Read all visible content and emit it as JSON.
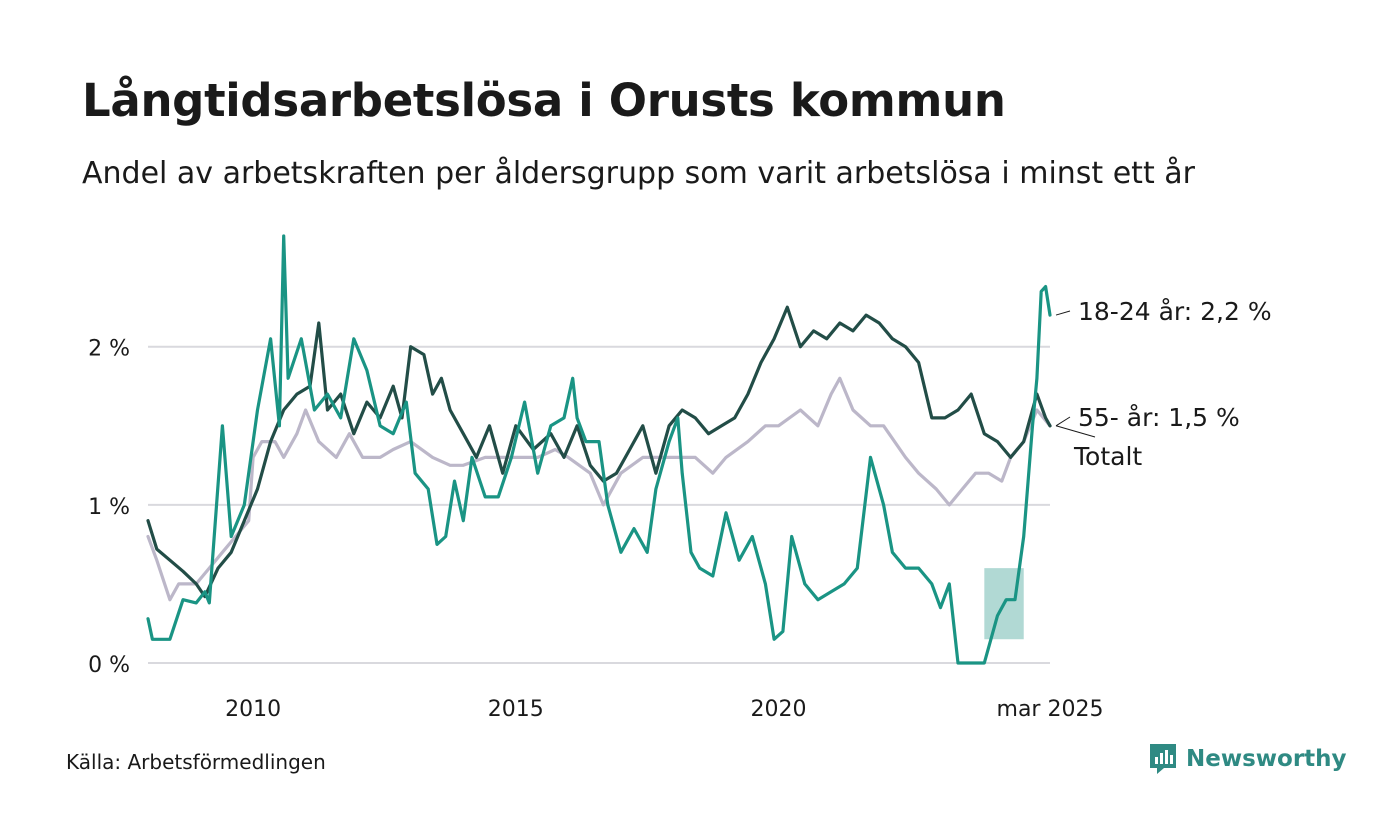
{
  "title": "Långtidsarbetslösa i Orusts kommun",
  "subtitle": "Andel av arbetskraften per åldersgrupp som varit arbetslösa i minst ett år",
  "source": "Källa: Arbetsförmedlingen",
  "brand": {
    "name": "Newsworthy",
    "icon": "newsworthy-logo-icon",
    "color": "#2f8a83"
  },
  "chart_data": {
    "type": "line",
    "x_unit": "date",
    "xlim": [
      "2008-01",
      "2025-03"
    ],
    "ylim": [
      0,
      2.7
    ],
    "yticks": [
      {
        "value": 0,
        "label": "0 %"
      },
      {
        "value": 1,
        "label": "1 %"
      },
      {
        "value": 2,
        "label": "2 %"
      }
    ],
    "xticks": [
      {
        "value": "2010-01",
        "label": "2010"
      },
      {
        "value": "2015-01",
        "label": "2015"
      },
      {
        "value": "2020-01",
        "label": "2020"
      },
      {
        "value": "2025-03",
        "label": "mar 2025"
      }
    ],
    "grid": "horizontal",
    "legend": "direct labels at right end",
    "series": [
      {
        "name": "Totalt",
        "end_label": "Totalt",
        "color": "#bcb7c9",
        "points": [
          [
            "2008-01",
            0.8
          ],
          [
            "2008-03",
            0.65
          ],
          [
            "2008-06",
            0.4
          ],
          [
            "2008-08",
            0.5
          ],
          [
            "2008-12",
            0.5
          ],
          [
            "2009-03",
            0.6
          ],
          [
            "2009-06",
            0.7
          ],
          [
            "2009-09",
            0.8
          ],
          [
            "2009-12",
            0.9
          ],
          [
            "2010-01",
            1.3
          ],
          [
            "2010-03",
            1.4
          ],
          [
            "2010-06",
            1.4
          ],
          [
            "2010-08",
            1.3
          ],
          [
            "2010-11",
            1.45
          ],
          [
            "2011-01",
            1.6
          ],
          [
            "2011-04",
            1.4
          ],
          [
            "2011-08",
            1.3
          ],
          [
            "2011-11",
            1.45
          ],
          [
            "2012-02",
            1.3
          ],
          [
            "2012-06",
            1.3
          ],
          [
            "2012-09",
            1.35
          ],
          [
            "2013-01",
            1.4
          ],
          [
            "2013-06",
            1.3
          ],
          [
            "2013-10",
            1.25
          ],
          [
            "2014-01",
            1.25
          ],
          [
            "2014-06",
            1.3
          ],
          [
            "2014-10",
            1.3
          ],
          [
            "2015-01",
            1.3
          ],
          [
            "2015-06",
            1.3
          ],
          [
            "2015-10",
            1.35
          ],
          [
            "2016-01",
            1.3
          ],
          [
            "2016-06",
            1.2
          ],
          [
            "2016-09",
            1.0
          ],
          [
            "2017-01",
            1.2
          ],
          [
            "2017-06",
            1.3
          ],
          [
            "2017-09",
            1.3
          ],
          [
            "2018-01",
            1.3
          ],
          [
            "2018-06",
            1.3
          ],
          [
            "2018-10",
            1.2
          ],
          [
            "2019-01",
            1.3
          ],
          [
            "2019-06",
            1.4
          ],
          [
            "2019-10",
            1.5
          ],
          [
            "2020-01",
            1.5
          ],
          [
            "2020-06",
            1.6
          ],
          [
            "2020-10",
            1.5
          ],
          [
            "2021-01",
            1.7
          ],
          [
            "2021-03",
            1.8
          ],
          [
            "2021-06",
            1.6
          ],
          [
            "2021-10",
            1.5
          ],
          [
            "2022-01",
            1.5
          ],
          [
            "2022-06",
            1.3
          ],
          [
            "2022-09",
            1.2
          ],
          [
            "2023-01",
            1.1
          ],
          [
            "2023-04",
            1.0
          ],
          [
            "2023-07",
            1.1
          ],
          [
            "2023-10",
            1.2
          ],
          [
            "2024-01",
            1.2
          ],
          [
            "2024-04",
            1.15
          ],
          [
            "2024-06",
            1.3
          ],
          [
            "2024-09",
            1.4
          ],
          [
            "2024-12",
            1.6
          ],
          [
            "2025-03",
            1.5
          ]
        ]
      },
      {
        "name": "55- år",
        "end_label": "55- år: 1,5 %",
        "color": "#224d47",
        "points": [
          [
            "2008-01",
            0.9
          ],
          [
            "2008-03",
            0.72
          ],
          [
            "2008-06",
            0.65
          ],
          [
            "2008-09",
            0.58
          ],
          [
            "2008-12",
            0.5
          ],
          [
            "2009-02",
            0.42
          ],
          [
            "2009-05",
            0.6
          ],
          [
            "2009-08",
            0.7
          ],
          [
            "2009-11",
            0.9
          ],
          [
            "2010-02",
            1.1
          ],
          [
            "2010-05",
            1.4
          ],
          [
            "2010-08",
            1.6
          ],
          [
            "2010-11",
            1.7
          ],
          [
            "2011-02",
            1.75
          ],
          [
            "2011-04",
            2.15
          ],
          [
            "2011-06",
            1.6
          ],
          [
            "2011-09",
            1.7
          ],
          [
            "2011-12",
            1.45
          ],
          [
            "2012-03",
            1.65
          ],
          [
            "2012-06",
            1.55
          ],
          [
            "2012-09",
            1.75
          ],
          [
            "2012-11",
            1.55
          ],
          [
            "2013-01",
            2.0
          ],
          [
            "2013-04",
            1.95
          ],
          [
            "2013-06",
            1.7
          ],
          [
            "2013-08",
            1.8
          ],
          [
            "2013-10",
            1.6
          ],
          [
            "2014-01",
            1.45
          ],
          [
            "2014-04",
            1.3
          ],
          [
            "2014-07",
            1.5
          ],
          [
            "2014-10",
            1.2
          ],
          [
            "2015-01",
            1.5
          ],
          [
            "2015-05",
            1.35
          ],
          [
            "2015-09",
            1.45
          ],
          [
            "2015-12",
            1.3
          ],
          [
            "2016-03",
            1.5
          ],
          [
            "2016-06",
            1.25
          ],
          [
            "2016-09",
            1.15
          ],
          [
            "2016-12",
            1.2
          ],
          [
            "2017-03",
            1.35
          ],
          [
            "2017-06",
            1.5
          ],
          [
            "2017-09",
            1.2
          ],
          [
            "2017-12",
            1.5
          ],
          [
            "2018-03",
            1.6
          ],
          [
            "2018-06",
            1.55
          ],
          [
            "2018-09",
            1.45
          ],
          [
            "2018-12",
            1.5
          ],
          [
            "2019-03",
            1.55
          ],
          [
            "2019-06",
            1.7
          ],
          [
            "2019-09",
            1.9
          ],
          [
            "2019-12",
            2.05
          ],
          [
            "2020-03",
            2.25
          ],
          [
            "2020-06",
            2.0
          ],
          [
            "2020-09",
            2.1
          ],
          [
            "2020-12",
            2.05
          ],
          [
            "2021-03",
            2.15
          ],
          [
            "2021-06",
            2.1
          ],
          [
            "2021-09",
            2.2
          ],
          [
            "2021-12",
            2.15
          ],
          [
            "2022-03",
            2.05
          ],
          [
            "2022-06",
            2.0
          ],
          [
            "2022-09",
            1.9
          ],
          [
            "2022-12",
            1.55
          ],
          [
            "2023-03",
            1.55
          ],
          [
            "2023-06",
            1.6
          ],
          [
            "2023-09",
            1.7
          ],
          [
            "2023-12",
            1.45
          ],
          [
            "2024-03",
            1.4
          ],
          [
            "2024-06",
            1.3
          ],
          [
            "2024-09",
            1.4
          ],
          [
            "2024-12",
            1.7
          ],
          [
            "2025-02",
            1.55
          ],
          [
            "2025-03",
            1.5
          ]
        ]
      },
      {
        "name": "18-24 år",
        "end_label": "18-24 år: 2,2 %",
        "color": "#1a9484",
        "points": [
          [
            "2008-01",
            0.28
          ],
          [
            "2008-02",
            0.15
          ],
          [
            "2008-06",
            0.15
          ],
          [
            "2008-09",
            0.4
          ],
          [
            "2008-12",
            0.38
          ],
          [
            "2009-02",
            0.45
          ],
          [
            "2009-03",
            0.38
          ],
          [
            "2009-06",
            1.5
          ],
          [
            "2009-08",
            0.8
          ],
          [
            "2009-11",
            1.0
          ],
          [
            "2010-02",
            1.6
          ],
          [
            "2010-05",
            2.05
          ],
          [
            "2010-07",
            1.5
          ],
          [
            "2010-08",
            2.7
          ],
          [
            "2010-09",
            1.8
          ],
          [
            "2010-12",
            2.05
          ],
          [
            "2011-03",
            1.6
          ],
          [
            "2011-06",
            1.7
          ],
          [
            "2011-09",
            1.55
          ],
          [
            "2011-12",
            2.05
          ],
          [
            "2012-03",
            1.85
          ],
          [
            "2012-06",
            1.5
          ],
          [
            "2012-09",
            1.45
          ],
          [
            "2012-12",
            1.65
          ],
          [
            "2013-02",
            1.2
          ],
          [
            "2013-05",
            1.1
          ],
          [
            "2013-07",
            0.75
          ],
          [
            "2013-09",
            0.8
          ],
          [
            "2013-11",
            1.15
          ],
          [
            "2014-01",
            0.9
          ],
          [
            "2014-03",
            1.3
          ],
          [
            "2014-06",
            1.05
          ],
          [
            "2014-09",
            1.05
          ],
          [
            "2014-12",
            1.3
          ],
          [
            "2015-03",
            1.65
          ],
          [
            "2015-06",
            1.2
          ],
          [
            "2015-09",
            1.5
          ],
          [
            "2015-12",
            1.55
          ],
          [
            "2016-02",
            1.8
          ],
          [
            "2016-03",
            1.55
          ],
          [
            "2016-05",
            1.4
          ],
          [
            "2016-08",
            1.4
          ],
          [
            "2016-10",
            1.0
          ],
          [
            "2017-01",
            0.7
          ],
          [
            "2017-04",
            0.85
          ],
          [
            "2017-07",
            0.7
          ],
          [
            "2017-09",
            1.1
          ],
          [
            "2017-12",
            1.4
          ],
          [
            "2018-02",
            1.55
          ],
          [
            "2018-03",
            1.2
          ],
          [
            "2018-05",
            0.7
          ],
          [
            "2018-07",
            0.6
          ],
          [
            "2018-10",
            0.55
          ],
          [
            "2019-01",
            0.95
          ],
          [
            "2019-04",
            0.65
          ],
          [
            "2019-07",
            0.8
          ],
          [
            "2019-10",
            0.5
          ],
          [
            "2019-12",
            0.15
          ],
          [
            "2020-02",
            0.2
          ],
          [
            "2020-04",
            0.8
          ],
          [
            "2020-07",
            0.5
          ],
          [
            "2020-10",
            0.4
          ],
          [
            "2021-01",
            0.45
          ],
          [
            "2021-04",
            0.5
          ],
          [
            "2021-07",
            0.6
          ],
          [
            "2021-10",
            1.3
          ],
          [
            "2022-01",
            1.0
          ],
          [
            "2022-03",
            0.7
          ],
          [
            "2022-06",
            0.6
          ],
          [
            "2022-09",
            0.6
          ],
          [
            "2022-12",
            0.5
          ],
          [
            "2023-02",
            0.35
          ],
          [
            "2023-04",
            0.5
          ],
          [
            "2023-06",
            0.0
          ],
          [
            "2023-09",
            0.0
          ],
          [
            "2023-12",
            0.0
          ],
          [
            "2024-03",
            0.3
          ],
          [
            "2024-05",
            0.4
          ],
          [
            "2024-07",
            0.4
          ],
          [
            "2024-09",
            0.8
          ],
          [
            "2024-11",
            1.5
          ],
          [
            "2024-12",
            1.8
          ],
          [
            "2025-01",
            2.35
          ],
          [
            "2025-02",
            2.38
          ],
          [
            "2025-03",
            2.2
          ]
        ]
      }
    ],
    "uncertainty_band": {
      "series": "18-24 år",
      "from": "2023-12",
      "to": "2024-09",
      "low": 0.15,
      "high": 0.6,
      "color": "#a8d5cf"
    }
  }
}
